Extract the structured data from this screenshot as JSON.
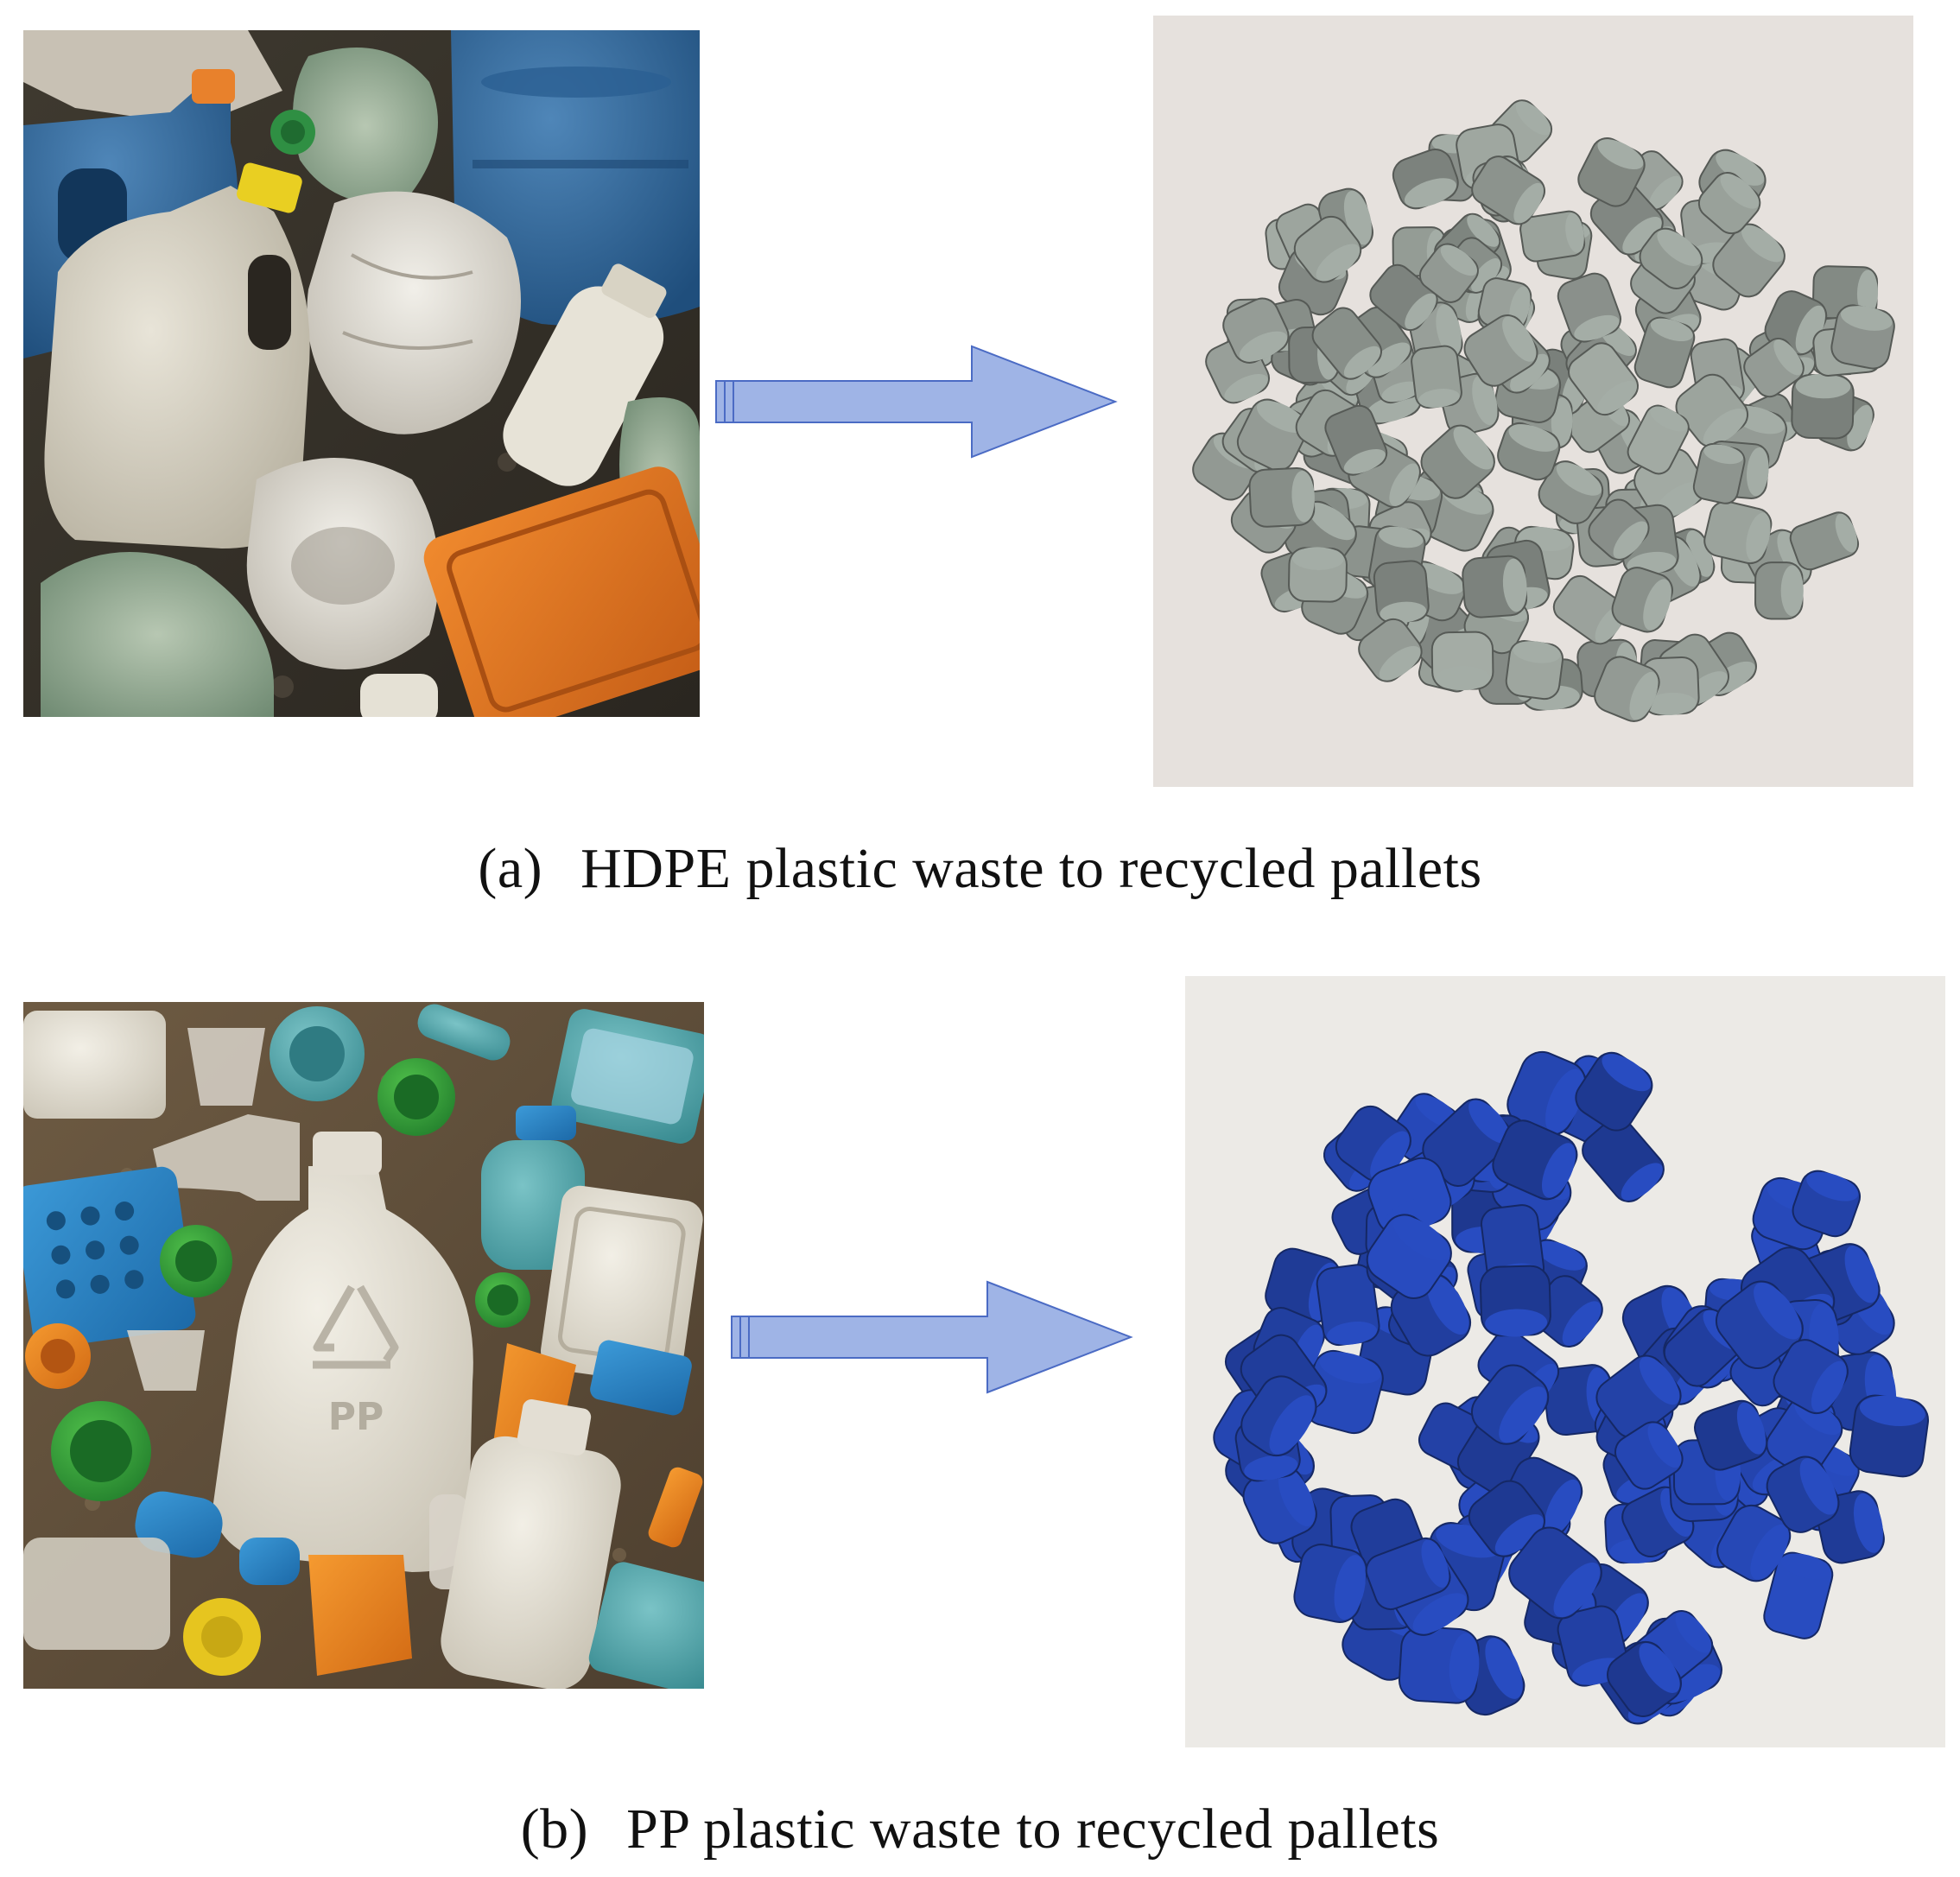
{
  "figure": {
    "panels": [
      {
        "label": "(a)",
        "caption": "HDPE plastic waste to recycled pallets",
        "pellet_color": "#8f9690"
      },
      {
        "label": "(b)",
        "caption": "PP plastic waste to recycled pallets",
        "pellet_color": "#2342a8"
      }
    ],
    "arrow_color": "#9fb4e6",
    "arrow_stroke": "#4b6bc4",
    "embedded_marks": {
      "pp_bottle_mark": "PP"
    }
  }
}
